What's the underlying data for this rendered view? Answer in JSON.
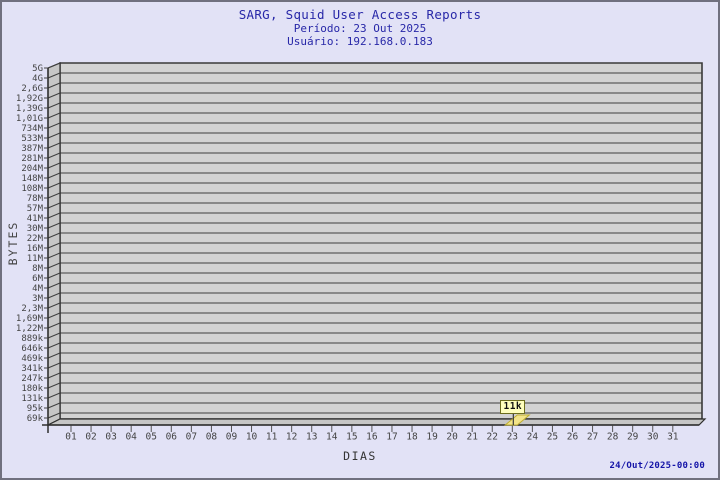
{
  "header": {
    "title": "SARG, Squid User Access Reports",
    "period": "Período: 23 Out 2025",
    "user": "Usuário: 192.168.0.183"
  },
  "footer": {
    "generated": "24/Out/2025-00:00"
  },
  "marker": {
    "day": "23",
    "label": "11k"
  },
  "chart_data": {
    "type": "bar",
    "title": "SARG, Squid User Access Reports",
    "subtitle": [
      "Período: 23 Out 2025",
      "Usuário: 192.168.0.183"
    ],
    "xlabel": "DIAS",
    "ylabel": "BYTES",
    "x_tick_labels": [
      "01",
      "02",
      "03",
      "04",
      "05",
      "06",
      "07",
      "08",
      "09",
      "10",
      "11",
      "12",
      "13",
      "14",
      "15",
      "16",
      "17",
      "18",
      "19",
      "20",
      "21",
      "22",
      "23",
      "24",
      "25",
      "26",
      "27",
      "28",
      "29",
      "30",
      "31"
    ],
    "y_tick_labels": [
      "5G",
      "4G",
      "2,6G",
      "1,92G",
      "1,39G",
      "1,01G",
      "734M",
      "533M",
      "387M",
      "281M",
      "204M",
      "148M",
      "108M",
      "78M",
      "57M",
      "41M",
      "30M",
      "22M",
      "16M",
      "11M",
      "8M",
      "6M",
      "4M",
      "3M",
      "2,3M",
      "1,69M",
      "1,22M",
      "889k",
      "646k",
      "469k",
      "341k",
      "247k",
      "180k",
      "131k",
      "95k",
      "69k"
    ],
    "series": [
      {
        "name": "BYTES",
        "points": [
          {
            "day": "23",
            "value_label": "11k"
          }
        ]
      }
    ],
    "legend": null,
    "grid": "horizontal",
    "style": "3d-bar",
    "colors": {
      "page_bg": "#e2e2f6",
      "plot_bg": "#d3d3d3",
      "wall": "#c6c6c6",
      "grid_line": "#3f3f3f",
      "frame_line": "#2e2e2e",
      "title_text": "#2828a8",
      "tick_text": "#444444",
      "footer_text": "#1414a8",
      "marker_bg": "#ffffbd",
      "marker_border": "#6d6d1e",
      "bar_fill": "#f2e48a",
      "bar_border": "#bfae30"
    }
  }
}
